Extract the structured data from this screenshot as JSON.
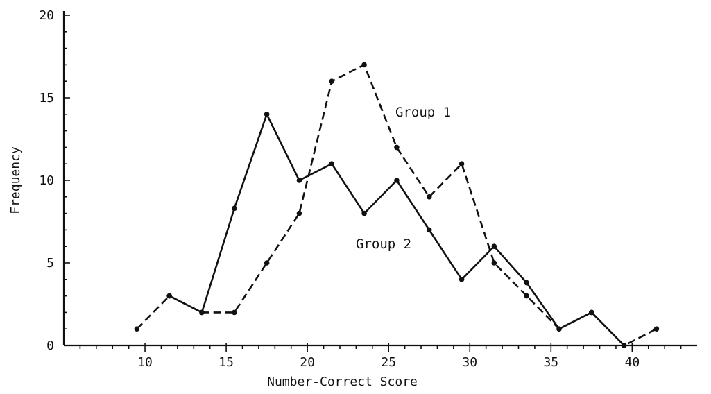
{
  "chart_data": {
    "type": "line",
    "xlabel": "Number-Correct Score",
    "ylabel": "Frequency",
    "xlim": [
      5,
      44
    ],
    "ylim": [
      0,
      20
    ],
    "x_ticks": [
      10,
      15,
      20,
      25,
      30,
      35,
      40
    ],
    "y_ticks": [
      0,
      5,
      10,
      15,
      20
    ],
    "grid": false,
    "series": [
      {
        "name": "Group 1",
        "style": "dashed",
        "x": [
          9.5,
          11.5,
          13.5,
          15.5,
          17.5,
          19.5,
          21.5,
          23.5,
          25.5,
          27.5,
          29.5,
          31.5,
          33.5,
          35.5,
          37.5,
          39.5,
          41.5
        ],
        "values": [
          1,
          3,
          2,
          2,
          5,
          8,
          16,
          17,
          12,
          9,
          11,
          5,
          3,
          1,
          2,
          0,
          1
        ]
      },
      {
        "name": "Group 2",
        "style": "solid",
        "x": [
          11.5,
          13.5,
          15.5,
          17.5,
          19.5,
          21.5,
          23.5,
          25.5,
          27.5,
          29.5,
          31.5,
          33.5,
          35.5,
          37.5,
          39.5
        ],
        "values": [
          3,
          2,
          8.3,
          14,
          10,
          11,
          8,
          10,
          7,
          4,
          6,
          3.8,
          1,
          2,
          0
        ]
      }
    ]
  }
}
